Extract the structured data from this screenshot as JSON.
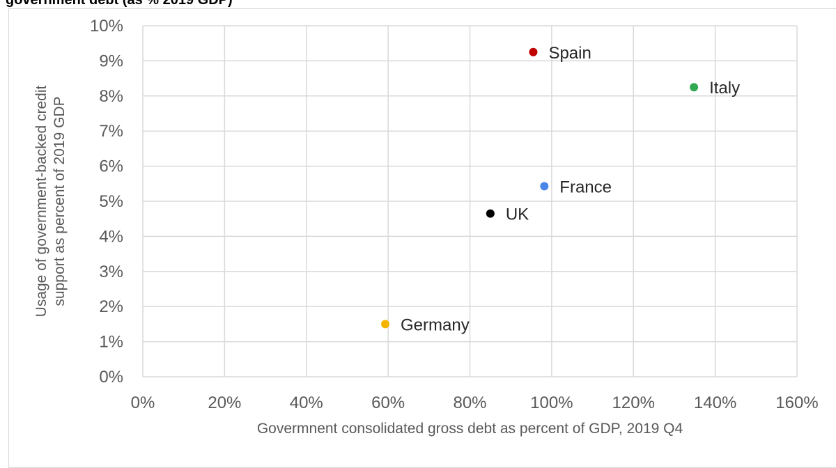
{
  "header": {
    "title_fragment": "government debt (as % 2019 GDP)"
  },
  "chart_data": {
    "type": "scatter",
    "xlabel": "Govermnent consolidated gross debt as percent of GDP, 2019 Q4",
    "ylabel_lines": [
      "Usage of government-backed credit",
      "support as percent of 2019 GDP"
    ],
    "xlim": [
      0,
      160
    ],
    "ylim": [
      0,
      10
    ],
    "x_ticks": [
      0,
      20,
      40,
      60,
      80,
      100,
      120,
      140,
      160
    ],
    "y_ticks": [
      0,
      1,
      2,
      3,
      4,
      5,
      6,
      7,
      8,
      9,
      10
    ],
    "x_tick_labels": [
      "0%",
      "20%",
      "40%",
      "60%",
      "80%",
      "100%",
      "120%",
      "140%",
      "160%"
    ],
    "y_tick_labels": [
      "0%",
      "1%",
      "2%",
      "3%",
      "4%",
      "5%",
      "6%",
      "7%",
      "8%",
      "9%",
      "10%"
    ],
    "grid": true,
    "points": [
      {
        "label": "Spain",
        "x": 95.5,
        "y": 9.25,
        "color": "#c00000"
      },
      {
        "label": "Italy",
        "x": 134.8,
        "y": 8.25,
        "color": "#33a853"
      },
      {
        "label": "France",
        "x": 98.2,
        "y": 5.43,
        "color": "#4a86e8"
      },
      {
        "label": "UK",
        "x": 85.0,
        "y": 4.65,
        "color": "#000000"
      },
      {
        "label": "Germany",
        "x": 59.3,
        "y": 1.5,
        "color": "#f4b400"
      }
    ],
    "grid_color": "#d9d9d9"
  }
}
